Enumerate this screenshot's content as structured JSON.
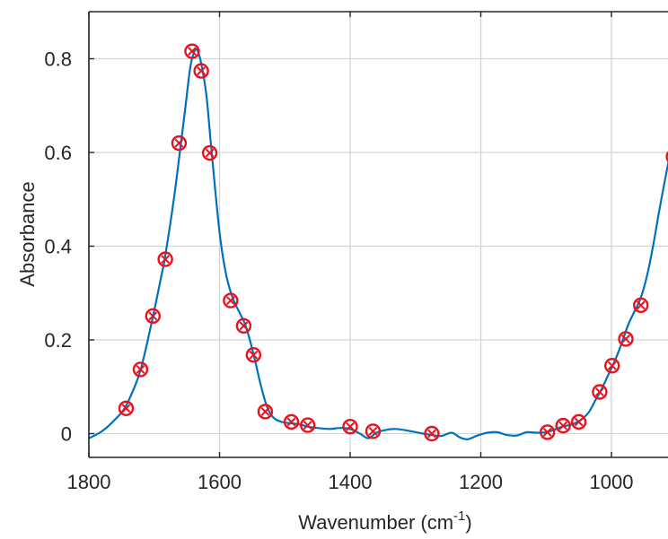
{
  "chart_data": {
    "type": "line",
    "title": "",
    "xlabel": "Wavenumber (cm",
    "xlabel_superscript": "-1",
    "xlabel_suffix": ")",
    "ylabel": "Absorbance",
    "xlim": [
      1800,
      910
    ],
    "x_reversed": true,
    "ylim": [
      -0.05,
      0.9
    ],
    "grid": true,
    "x_ticks": [
      1800,
      1600,
      1400,
      1200,
      1000
    ],
    "x_tick_labels": [
      "1800",
      "1600",
      "1400",
      "1200",
      "1000"
    ],
    "y_ticks": [
      0,
      0.2,
      0.4,
      0.6,
      0.8
    ],
    "y_tick_labels": [
      "0",
      "0.2",
      "0.4",
      "0.6",
      "0.8"
    ],
    "series": [
      {
        "kind": "line",
        "color": "#0072BD",
        "x": [
          1800,
          1780,
          1760,
          1745,
          1730,
          1720,
          1705,
          1690,
          1683,
          1670,
          1660,
          1652,
          1645,
          1640,
          1635,
          1628,
          1620,
          1612,
          1600,
          1590,
          1580,
          1570,
          1560,
          1548,
          1538,
          1528,
          1518,
          1505,
          1490,
          1478,
          1465,
          1450,
          1432,
          1415,
          1400,
          1385,
          1372,
          1360,
          1345,
          1330,
          1310,
          1292,
          1275,
          1260,
          1245,
          1232,
          1220,
          1205,
          1190,
          1175,
          1160,
          1145,
          1130,
          1115,
          1100,
          1088,
          1075,
          1060,
          1048,
          1035,
          1025,
          1015,
          1005,
          995,
          985,
          975,
          965,
          955,
          945,
          935,
          925,
          910
        ],
        "y": [
          -0.01,
          0.005,
          0.03,
          0.055,
          0.1,
          0.14,
          0.23,
          0.33,
          0.38,
          0.5,
          0.61,
          0.7,
          0.78,
          0.81,
          0.82,
          0.79,
          0.72,
          0.6,
          0.43,
          0.34,
          0.29,
          0.26,
          0.23,
          0.17,
          0.11,
          0.06,
          0.035,
          0.025,
          0.022,
          0.02,
          0.015,
          0.012,
          0.01,
          0.012,
          0.01,
          0.0,
          -0.01,
          0.002,
          0.008,
          0.01,
          0.006,
          0.001,
          -0.003,
          -0.005,
          0.002,
          -0.008,
          -0.012,
          -0.004,
          0.002,
          0.003,
          -0.003,
          -0.004,
          0.003,
          0.002,
          0.003,
          0.008,
          0.015,
          0.02,
          0.028,
          0.045,
          0.07,
          0.095,
          0.125,
          0.155,
          0.19,
          0.23,
          0.26,
          0.29,
          0.34,
          0.41,
          0.49,
          0.6
        ]
      },
      {
        "kind": "markers",
        "marker": "circle-x",
        "color": "#E8121C",
        "x": [
          1743,
          1721,
          1702,
          1683,
          1662,
          1642,
          1628,
          1615,
          1583,
          1563,
          1548,
          1530,
          1490,
          1465,
          1400,
          1365,
          1275,
          1098,
          1074,
          1050,
          1018,
          999,
          978,
          955,
          905
        ],
        "y": [
          0.054,
          0.137,
          0.251,
          0.372,
          0.62,
          0.816,
          0.774,
          0.599,
          0.284,
          0.23,
          0.168,
          0.047,
          0.025,
          0.018,
          0.015,
          0.005,
          0.0,
          0.003,
          0.017,
          0.025,
          0.089,
          0.145,
          0.202,
          0.274,
          0.591
        ]
      }
    ]
  }
}
